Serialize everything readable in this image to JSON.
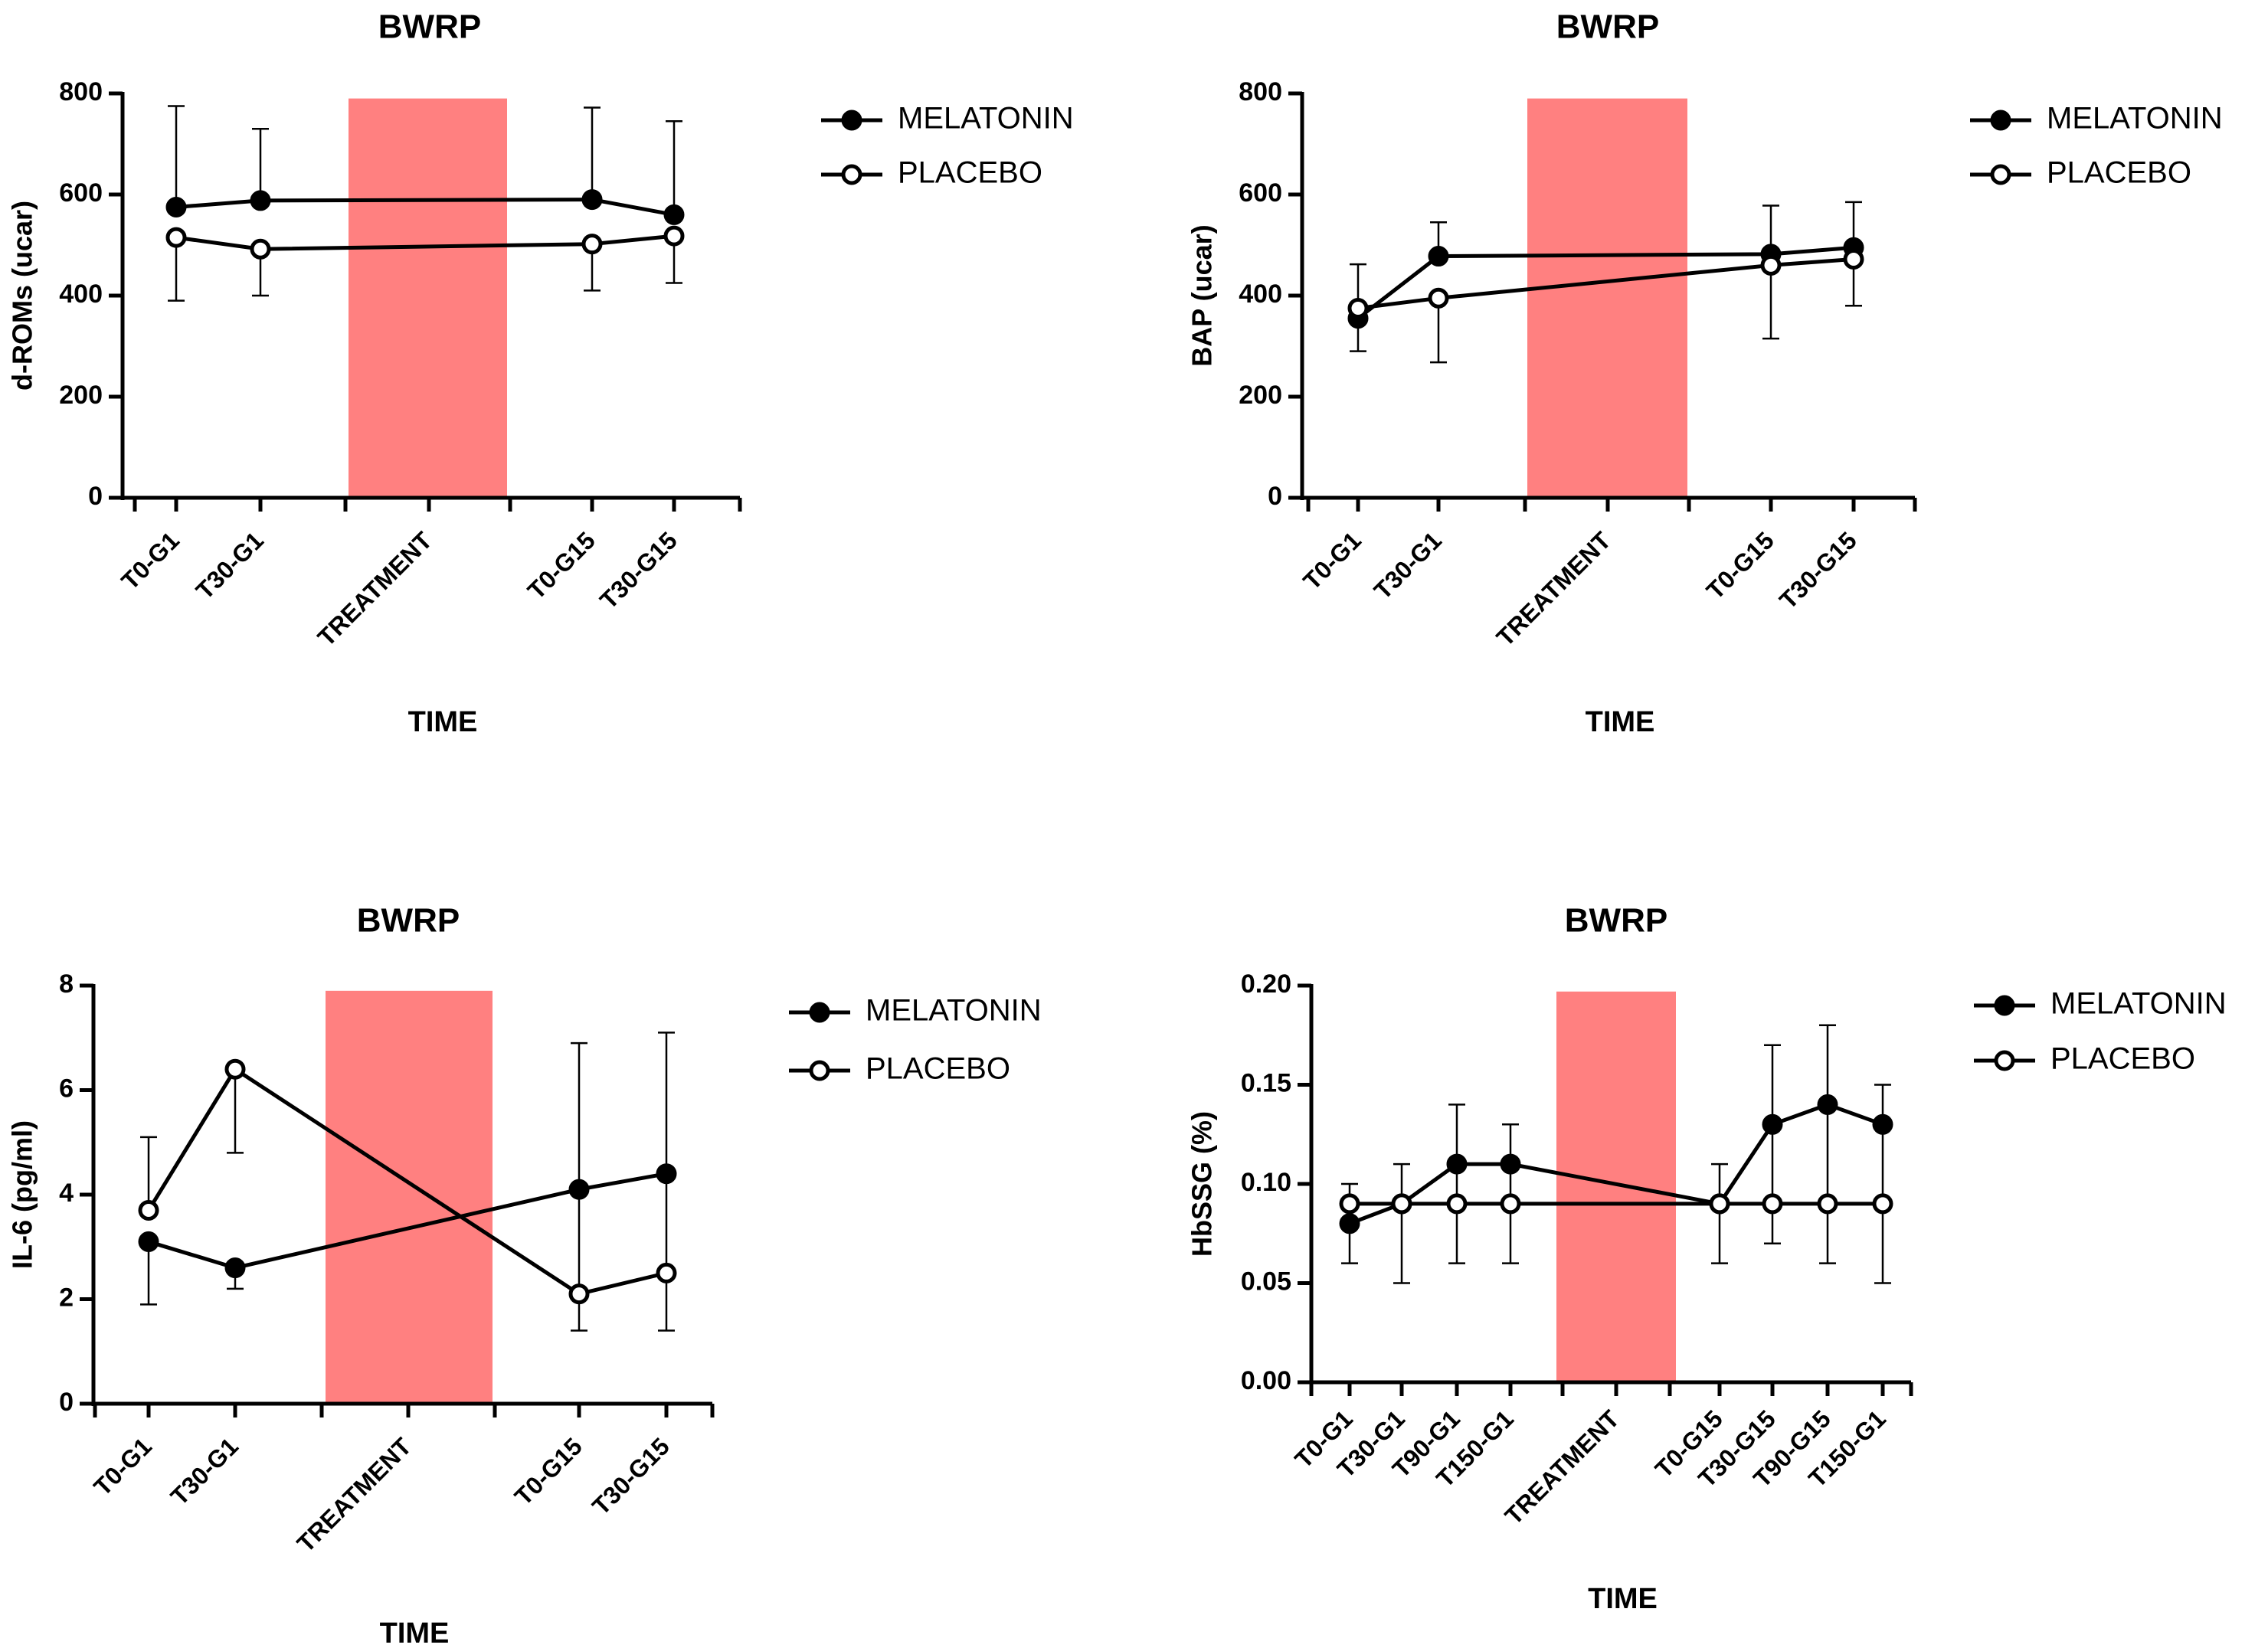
{
  "chart_data": [
    {
      "type": "line",
      "title": "BWRP",
      "xlabel": "TIME",
      "ylabel": "d-ROMs (ucar)",
      "ylim": [
        0,
        800
      ],
      "yticks": [
        0,
        200,
        400,
        600,
        800
      ],
      "categories": [
        "T0-G1",
        "T30-G1",
        "TREATMENT",
        "T0-G15",
        "T30-G15"
      ],
      "treatment_label": "TREATMENT",
      "series": [
        {
          "name": "MELATONIN",
          "marker": "filled",
          "x": [
            "T0-G1",
            "T30-G1",
            "T0-G15",
            "T30-G15"
          ],
          "values": [
            575,
            588,
            590,
            560
          ],
          "error_upper": [
            775,
            730,
            772,
            745
          ]
        },
        {
          "name": "PLACEBO",
          "marker": "open",
          "x": [
            "T0-G1",
            "T30-G1",
            "T0-G15",
            "T30-G15"
          ],
          "values": [
            515,
            492,
            502,
            518
          ],
          "error_lower": [
            390,
            400,
            410,
            425
          ]
        }
      ],
      "shaded_region": {
        "label": "TREATMENT",
        "color": "#ff8080",
        "ymax": 790
      }
    },
    {
      "type": "line",
      "title": "BWRP",
      "xlabel": "TIME",
      "ylabel": "BAP (ucar)",
      "ylim": [
        0,
        800
      ],
      "yticks": [
        0,
        200,
        400,
        600,
        800
      ],
      "categories": [
        "T0-G1",
        "T30-G1",
        "TREATMENT",
        "T0-G15",
        "T30-G15"
      ],
      "treatment_label": "TREATMENT",
      "series": [
        {
          "name": "MELATONIN",
          "marker": "filled",
          "x": [
            "T0-G1",
            "T30-G1",
            "T0-G15",
            "T30-G15"
          ],
          "values": [
            355,
            478,
            482,
            495
          ],
          "error_upper": [
            462,
            545,
            578,
            585
          ]
        },
        {
          "name": "PLACEBO",
          "marker": "open",
          "x": [
            "T0-G1",
            "T30-G1",
            "T0-G15",
            "T30-G15"
          ],
          "values": [
            375,
            395,
            460,
            472
          ],
          "error_lower": [
            290,
            268,
            315,
            380
          ]
        }
      ],
      "shaded_region": {
        "label": "TREATMENT",
        "color": "#ff8080",
        "ymax": 790
      }
    },
    {
      "type": "line",
      "title": "BWRP",
      "xlabel": "TIME",
      "ylabel": "IL-6 (pg/ml)",
      "ylim": [
        0,
        8
      ],
      "yticks": [
        0,
        2,
        4,
        6,
        8
      ],
      "categories": [
        "T0-G1",
        "T30-G1",
        "TREATMENT",
        "T0-G15",
        "T30-G15"
      ],
      "treatment_label": "TREATMENT",
      "series": [
        {
          "name": "MELATONIN",
          "marker": "filled",
          "x": [
            "T0-G1",
            "T30-G1",
            "T0-G15",
            "T30-G15"
          ],
          "values": [
            3.1,
            2.6,
            4.1,
            4.4
          ],
          "error_lower": [
            1.9,
            2.2,
            null,
            null
          ]
        },
        {
          "name": "PLACEBO",
          "marker": "open",
          "x": [
            "T0-G1",
            "T30-G1",
            "T0-G15",
            "T30-G15"
          ],
          "values": [
            3.7,
            6.4,
            2.1,
            2.5
          ],
          "error_upper": [
            5.1,
            null,
            6.9,
            7.1
          ],
          "error_lower": [
            null,
            4.8,
            1.4,
            1.4
          ]
        }
      ],
      "shaded_region": {
        "label": "TREATMENT",
        "color": "#ff8080",
        "ymax": 7.9
      }
    },
    {
      "type": "line",
      "title": "BWRP",
      "xlabel": "TIME",
      "ylabel": "HbSSG (%)",
      "ylim": [
        0,
        0.2
      ],
      "yticks": [
        "0.00",
        "0.05",
        "0.10",
        "0.15",
        "0.20"
      ],
      "categories": [
        "T0-G1",
        "T30-G1",
        "T90-G1",
        "T150-G1",
        "TREATMENT",
        "T0-G15",
        "T30-G15",
        "T90-G15",
        "T150-G1"
      ],
      "treatment_label": "TREATMENT",
      "series": [
        {
          "name": "MELATONIN",
          "marker": "filled",
          "x": [
            0,
            1,
            2,
            3,
            5,
            6,
            7,
            8
          ],
          "values": [
            0.08,
            0.09,
            0.11,
            0.11,
            0.09,
            0.13,
            0.14,
            0.13
          ],
          "error_upper": [
            0.1,
            0.11,
            0.14,
            0.13,
            0.11,
            0.17,
            0.18,
            0.15
          ],
          "error_lower": [
            0.06,
            0.05,
            0.06,
            0.06,
            0.06,
            0.07,
            0.06,
            0.05
          ]
        },
        {
          "name": "PLACEBO",
          "marker": "open",
          "x": [
            0,
            1,
            2,
            3,
            5,
            6,
            7,
            8
          ],
          "values": [
            0.09,
            0.09,
            0.09,
            0.09,
            0.09,
            0.09,
            0.09,
            0.09
          ]
        }
      ],
      "shaded_region": {
        "label": "TREATMENT",
        "color": "#ff8080",
        "ymax": 0.197
      }
    }
  ]
}
